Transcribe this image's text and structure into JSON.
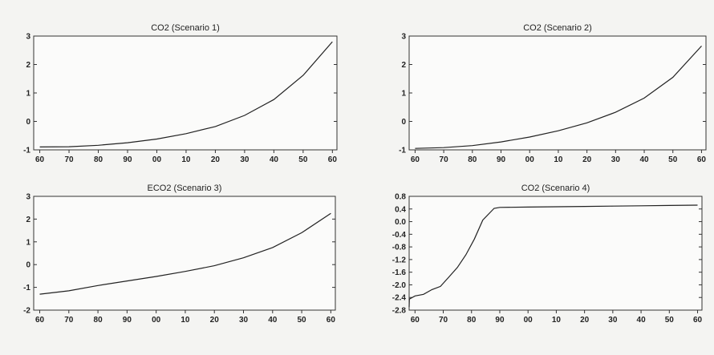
{
  "chart_data": [
    {
      "type": "line",
      "title": "CO2 (Scenario 1)",
      "xlabel": "",
      "ylabel": "",
      "x_ticks": [
        "60",
        "70",
        "80",
        "90",
        "00",
        "10",
        "20",
        "30",
        "40",
        "50",
        "60"
      ],
      "y_ticks": [
        3,
        2,
        1,
        0,
        -1
      ],
      "ylim": [
        -1,
        3
      ],
      "grid": false,
      "series": [
        {
          "x": [
            0,
            1,
            2,
            3,
            4,
            5,
            6,
            7,
            8,
            9,
            10
          ],
          "y": [
            -0.9,
            -0.89,
            -0.84,
            -0.75,
            -0.62,
            -0.43,
            -0.18,
            0.21,
            0.77,
            1.62,
            2.8
          ]
        }
      ]
    },
    {
      "type": "line",
      "title": "CO2 (Scenario 2)",
      "xlabel": "",
      "ylabel": "",
      "x_ticks": [
        "60",
        "70",
        "80",
        "90",
        "00",
        "10",
        "20",
        "30",
        "40",
        "50",
        "60"
      ],
      "y_ticks": [
        3,
        2,
        1,
        0,
        -1
      ],
      "ylim": [
        -1,
        3
      ],
      "grid": false,
      "series": [
        {
          "x": [
            0,
            1,
            2,
            3,
            4,
            5,
            6,
            7,
            8,
            9,
            10
          ],
          "y": [
            -0.95,
            -0.92,
            -0.85,
            -0.72,
            -0.55,
            -0.33,
            -0.05,
            0.32,
            0.82,
            1.55,
            2.65
          ]
        }
      ]
    },
    {
      "type": "line",
      "title": "ECO2 (Scenario 3)",
      "xlabel": "",
      "ylabel": "",
      "x_ticks": [
        "60",
        "70",
        "80",
        "90",
        "00",
        "10",
        "20",
        "30",
        "40",
        "50",
        "60"
      ],
      "y_ticks": [
        3,
        2,
        1,
        0,
        -1,
        -2
      ],
      "ylim": [
        -2,
        3
      ],
      "grid": false,
      "series": [
        {
          "x": [
            0,
            1,
            2,
            3,
            4,
            5,
            6,
            7,
            8,
            9,
            10
          ],
          "y": [
            -1.3,
            -1.15,
            -0.92,
            -0.72,
            -0.52,
            -0.3,
            -0.05,
            0.3,
            0.75,
            1.4,
            2.25
          ]
        }
      ]
    },
    {
      "type": "line",
      "title": "CO2 (Scenario 4)",
      "xlabel": "",
      "ylabel": "",
      "x_ticks": [
        "60",
        "70",
        "80",
        "90",
        "00",
        "10",
        "20",
        "30",
        "40",
        "50",
        "60"
      ],
      "y_ticks": [
        0.8,
        0.4,
        0.0,
        -0.4,
        -0.8,
        -1.2,
        -1.6,
        -2.0,
        -2.4,
        -2.8
      ],
      "y_tick_labels": [
        "0.8",
        "0.4",
        "0.0",
        "-0.4",
        "-0.8",
        "-1.2",
        "-1.6",
        "-2.0",
        "-2.4",
        "-2.8"
      ],
      "ylim": [
        -2.8,
        0.8
      ],
      "grid": false,
      "series": [
        {
          "x": [
            -0.4,
            -0.2,
            0,
            0.3,
            0.6,
            0.9,
            1.2,
            1.5,
            1.8,
            2.1,
            2.4,
            2.8,
            3,
            4,
            5,
            6,
            7,
            8,
            9,
            10
          ],
          "y": [
            -2.7,
            -2.45,
            -2.35,
            -2.3,
            -2.15,
            -2.05,
            -1.75,
            -1.45,
            -1.05,
            -0.55,
            0.05,
            0.42,
            0.45,
            0.46,
            0.47,
            0.48,
            0.49,
            0.5,
            0.51,
            0.52
          ]
        }
      ]
    }
  ]
}
